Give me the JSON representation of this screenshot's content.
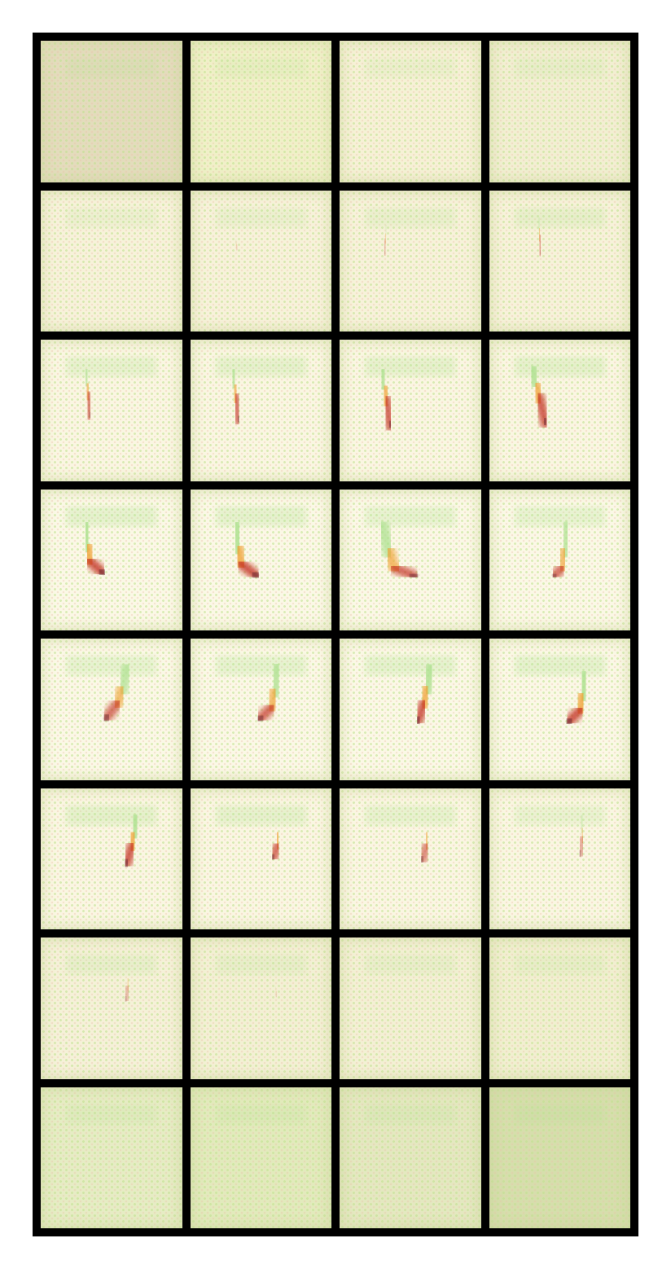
{
  "grid": {
    "rows": 8,
    "columns": 4,
    "border_color": "#000000",
    "cell_background": "#f7f3d9",
    "stroke_colors": {
      "top": "#a8e08a",
      "middle": "#f0a030",
      "bottom": "#c22a1a",
      "shadow": "#6a2a30"
    },
    "frames": [
      {
        "tone": "#e3dcbc",
        "intensity": 0.0
      },
      {
        "tone": "#f0f0c8",
        "intensity": 0.0
      },
      {
        "tone": "#f6f1d6",
        "intensity": 0.0
      },
      {
        "tone": "#f2efd2",
        "intensity": 0.0
      },
      {
        "tone": "#f7f2da",
        "intensity": 0.05
      },
      {
        "tone": "#f7f2da",
        "intensity": 0.15
      },
      {
        "tone": "#f7f2da",
        "intensity": 0.3
      },
      {
        "tone": "#f7f2da",
        "intensity": 0.45
      },
      {
        "tone": "#faf6e2",
        "intensity": 0.65
      },
      {
        "tone": "#faf6e2",
        "intensity": 0.72
      },
      {
        "tone": "#faf6e2",
        "intensity": 0.8
      },
      {
        "tone": "#faf6e2",
        "intensity": 0.85
      },
      {
        "tone": "#fbf8e6",
        "intensity": 0.9
      },
      {
        "tone": "#fbf8e6",
        "intensity": 0.9
      },
      {
        "tone": "#fbf8e6",
        "intensity": 0.8
      },
      {
        "tone": "#fbf8e6",
        "intensity": 0.75
      },
      {
        "tone": "#fbf8e6",
        "intensity": 0.75
      },
      {
        "tone": "#fbf8e6",
        "intensity": 0.8
      },
      {
        "tone": "#fbf8e6",
        "intensity": 0.85
      },
      {
        "tone": "#fbf8e6",
        "intensity": 0.9
      },
      {
        "tone": "#faf6e2",
        "intensity": 0.85
      },
      {
        "tone": "#faf6e2",
        "intensity": 0.75
      },
      {
        "tone": "#faf6e2",
        "intensity": 0.6
      },
      {
        "tone": "#faf6e2",
        "intensity": 0.4
      },
      {
        "tone": "#f5f1d8",
        "intensity": 0.3
      },
      {
        "tone": "#f3f0d4",
        "intensity": 0.12
      },
      {
        "tone": "#f3f0d4",
        "intensity": 0.06
      },
      {
        "tone": "#f1efd0",
        "intensity": 0.0
      },
      {
        "tone": "#e6ecc4",
        "intensity": 0.0
      },
      {
        "tone": "#e2eabc",
        "intensity": 0.0
      },
      {
        "tone": "#e4e8c0",
        "intensity": 0.0
      },
      {
        "tone": "#d6deac",
        "intensity": 0.0
      }
    ]
  }
}
